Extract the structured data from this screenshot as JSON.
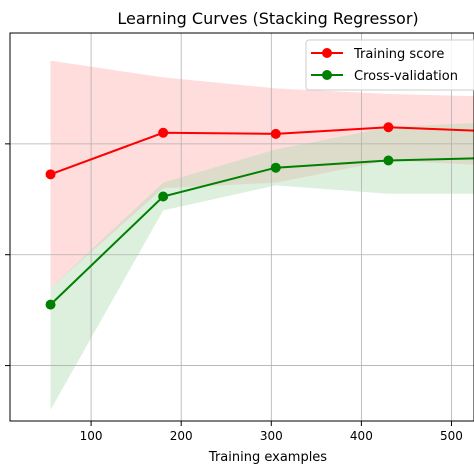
{
  "chart_data": {
    "type": "line",
    "title": "Learning Curves (Stacking Regressor)",
    "xlabel": "Training examples",
    "ylabel": "",
    "x_ticks": [
      100,
      200,
      300,
      400,
      500
    ],
    "xlim": [
      10,
      525
    ],
    "ylim": [
      0.3,
      1.0
    ],
    "grid": true,
    "legend_position": "top-right",
    "series": [
      {
        "name": "Training score",
        "color": "#ff0000",
        "band_color": "#ffb3b3",
        "x": [
          55,
          180,
          305,
          430,
          555
        ],
        "y": [
          0.745,
          0.82,
          0.818,
          0.83,
          0.822
        ],
        "upper": [
          0.95,
          0.92,
          0.9,
          0.89,
          0.885
        ],
        "lower": [
          0.54,
          0.72,
          0.73,
          0.77,
          0.76
        ]
      },
      {
        "name": "Cross-validation",
        "color": "#008000",
        "band_color": "#b3dbb3",
        "x": [
          55,
          180,
          305,
          430,
          555
        ],
        "y": [
          0.51,
          0.705,
          0.757,
          0.77,
          0.775
        ],
        "upper": [
          0.54,
          0.73,
          0.79,
          0.83,
          0.84
        ],
        "lower": [
          0.32,
          0.68,
          0.725,
          0.71,
          0.71
        ]
      }
    ]
  }
}
